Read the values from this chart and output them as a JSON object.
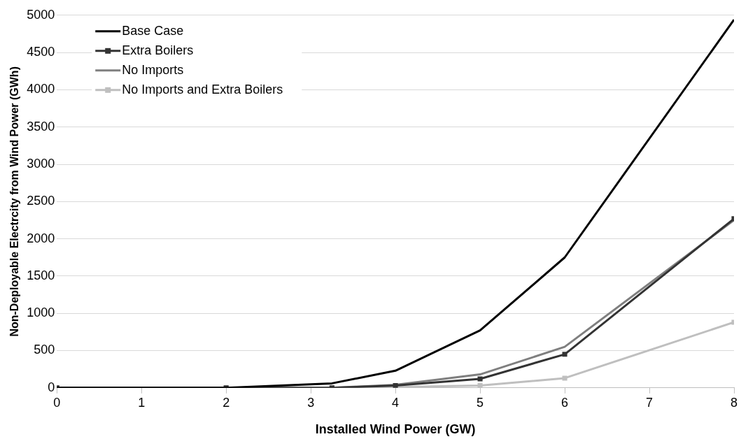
{
  "chart_data": {
    "type": "line",
    "xlabel": "Installed Wind Power (GW)",
    "ylabel": "Non-Deployable Electrcity from Wind Power (GWh)",
    "x": [
      0,
      2,
      3.25,
      4,
      5,
      6,
      8
    ],
    "series": [
      {
        "name": "Base Case",
        "color": "#000000",
        "marker": "none",
        "values": [
          0,
          0,
          60,
          230,
          770,
          1750,
          4940
        ]
      },
      {
        "name": "Extra Boilers",
        "color": "#333333",
        "marker": "square",
        "values": [
          0,
          0,
          0,
          30,
          120,
          450,
          2270
        ]
      },
      {
        "name": "No Imports",
        "color": "#7f7f7f",
        "marker": "none",
        "values": [
          0,
          0,
          0,
          40,
          180,
          550,
          2250
        ]
      },
      {
        "name": "No Imports and Extra Boilers",
        "color": "#bfbfbf",
        "marker": "square",
        "values": [
          0,
          0,
          0,
          10,
          30,
          130,
          880
        ]
      }
    ],
    "xlim": [
      0,
      8
    ],
    "xticks": [
      0,
      1,
      2,
      3,
      4,
      5,
      6,
      7,
      8
    ],
    "ylim": [
      0,
      5000
    ],
    "yticks": [
      0,
      500,
      1000,
      1500,
      2000,
      2500,
      3000,
      3500,
      4000,
      4500,
      5000
    ],
    "grid": "y",
    "legend": "top left",
    "line_style": "solid"
  }
}
